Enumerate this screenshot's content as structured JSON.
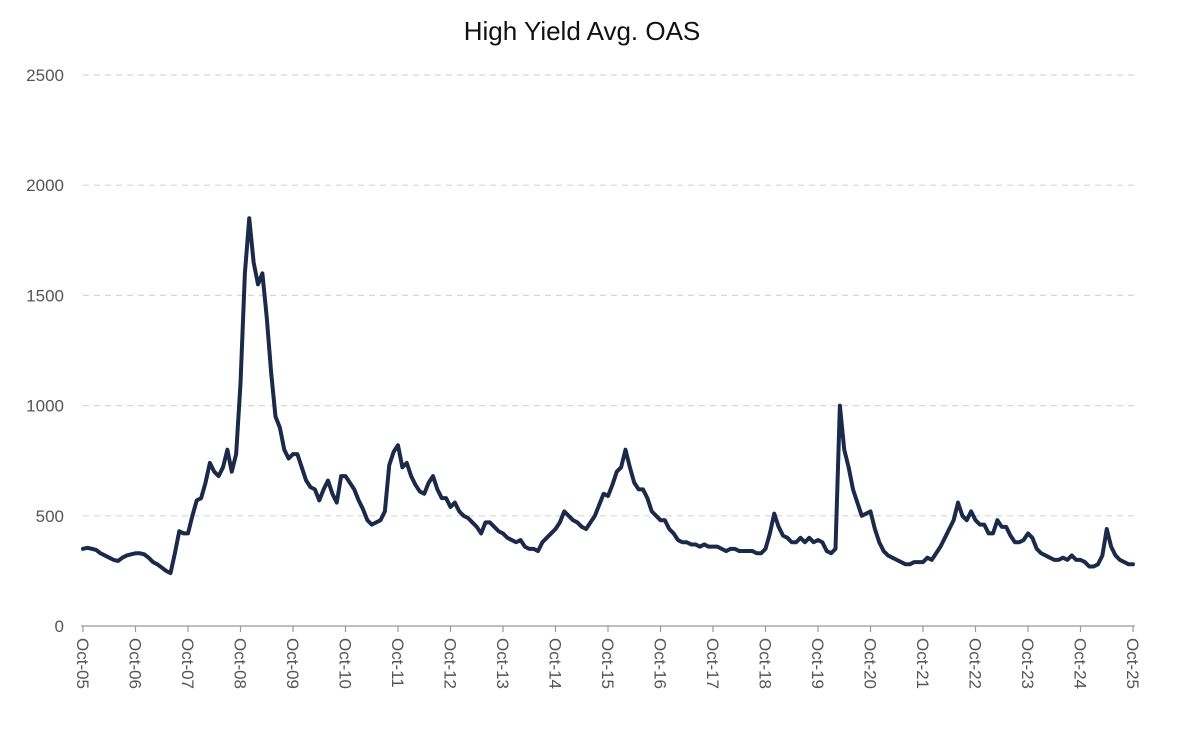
{
  "chart_data": {
    "type": "line",
    "title": "High Yield Avg. OAS",
    "categories": [
      "Oct-05",
      null,
      null,
      null,
      null,
      null,
      null,
      null,
      null,
      null,
      null,
      null,
      "Oct-06",
      null,
      null,
      null,
      null,
      null,
      null,
      null,
      null,
      null,
      null,
      null,
      "Oct-07",
      null,
      null,
      null,
      null,
      null,
      null,
      null,
      null,
      null,
      null,
      null,
      "Oct-08",
      null,
      null,
      null,
      null,
      null,
      null,
      null,
      null,
      null,
      null,
      null,
      "Oct-09",
      null,
      null,
      null,
      null,
      null,
      null,
      null,
      null,
      null,
      null,
      null,
      "Oct-10",
      null,
      null,
      null,
      null,
      null,
      null,
      null,
      null,
      null,
      null,
      null,
      "Oct-11",
      null,
      null,
      null,
      null,
      null,
      null,
      null,
      null,
      null,
      null,
      null,
      "Oct-12",
      null,
      null,
      null,
      null,
      null,
      null,
      null,
      null,
      null,
      null,
      null,
      "Oct-13",
      null,
      null,
      null,
      null,
      null,
      null,
      null,
      null,
      null,
      null,
      null,
      "Oct-14",
      null,
      null,
      null,
      null,
      null,
      null,
      null,
      null,
      null,
      null,
      null,
      "Oct-15",
      null,
      null,
      null,
      null,
      null,
      null,
      null,
      null,
      null,
      null,
      null,
      "Oct-16",
      null,
      null,
      null,
      null,
      null,
      null,
      null,
      null,
      null,
      null,
      null,
      "Oct-17",
      null,
      null,
      null,
      null,
      null,
      null,
      null,
      null,
      null,
      null,
      null,
      "Oct-18",
      null,
      null,
      null,
      null,
      null,
      null,
      null,
      null,
      null,
      null,
      null,
      "Oct-19",
      null,
      null,
      null,
      null,
      null,
      null,
      null,
      null,
      null,
      null,
      null,
      "Oct-20",
      null,
      null,
      null,
      null,
      null,
      null,
      null,
      null,
      null,
      null,
      null,
      "Oct-21",
      null,
      null,
      null,
      null,
      null,
      null,
      null,
      null,
      null,
      null,
      null,
      "Oct-22",
      null,
      null,
      null,
      null,
      null,
      null,
      null,
      null,
      null,
      null,
      null,
      "Oct-23",
      null,
      null,
      null,
      null,
      null,
      null,
      null,
      null,
      null,
      null,
      null,
      "Oct-24",
      null,
      null,
      null,
      null,
      null,
      null,
      null,
      null,
      null,
      null,
      null,
      "Oct-25"
    ],
    "values": [
      350,
      355,
      350,
      345,
      330,
      320,
      310,
      300,
      295,
      310,
      320,
      325,
      330,
      330,
      325,
      310,
      290,
      280,
      265,
      250,
      240,
      330,
      430,
      420,
      420,
      500,
      570,
      580,
      650,
      740,
      700,
      680,
      720,
      800,
      700,
      780,
      1100,
      1600,
      1850,
      1650,
      1550,
      1600,
      1400,
      1150,
      950,
      900,
      800,
      760,
      780,
      780,
      720,
      660,
      630,
      620,
      570,
      620,
      660,
      600,
      560,
      680,
      680,
      650,
      620,
      570,
      530,
      480,
      460,
      470,
      480,
      520,
      730,
      790,
      820,
      720,
      740,
      680,
      640,
      610,
      600,
      650,
      680,
      620,
      580,
      580,
      540,
      560,
      520,
      500,
      490,
      470,
      450,
      420,
      470,
      470,
      450,
      430,
      420,
      400,
      390,
      380,
      390,
      360,
      350,
      350,
      340,
      380,
      400,
      420,
      440,
      470,
      520,
      500,
      480,
      470,
      450,
      440,
      470,
      500,
      550,
      600,
      590,
      640,
      700,
      720,
      800,
      720,
      650,
      620,
      620,
      580,
      520,
      500,
      480,
      480,
      440,
      420,
      390,
      380,
      380,
      370,
      370,
      360,
      370,
      360,
      360,
      360,
      350,
      340,
      350,
      350,
      340,
      340,
      340,
      340,
      330,
      330,
      350,
      420,
      510,
      450,
      410,
      400,
      380,
      380,
      400,
      380,
      400,
      380,
      390,
      380,
      340,
      330,
      350,
      1000,
      800,
      720,
      620,
      560,
      500,
      510,
      520,
      440,
      380,
      340,
      320,
      310,
      300,
      290,
      280,
      280,
      290,
      290,
      290,
      310,
      300,
      330,
      360,
      400,
      440,
      480,
      560,
      500,
      480,
      520,
      480,
      460,
      460,
      420,
      420,
      480,
      450,
      450,
      410,
      380,
      380,
      390,
      420,
      400,
      350,
      330,
      320,
      310,
      300,
      300,
      310,
      300,
      320,
      300,
      300,
      290,
      270,
      270,
      280,
      320,
      440,
      360,
      320,
      300,
      290,
      280,
      280
    ],
    "color": "#1b2a4a",
    "ylim": [
      0,
      2500
    ],
    "yticks": [
      0,
      500,
      1000,
      1500,
      2000,
      2500
    ],
    "grid": true
  }
}
